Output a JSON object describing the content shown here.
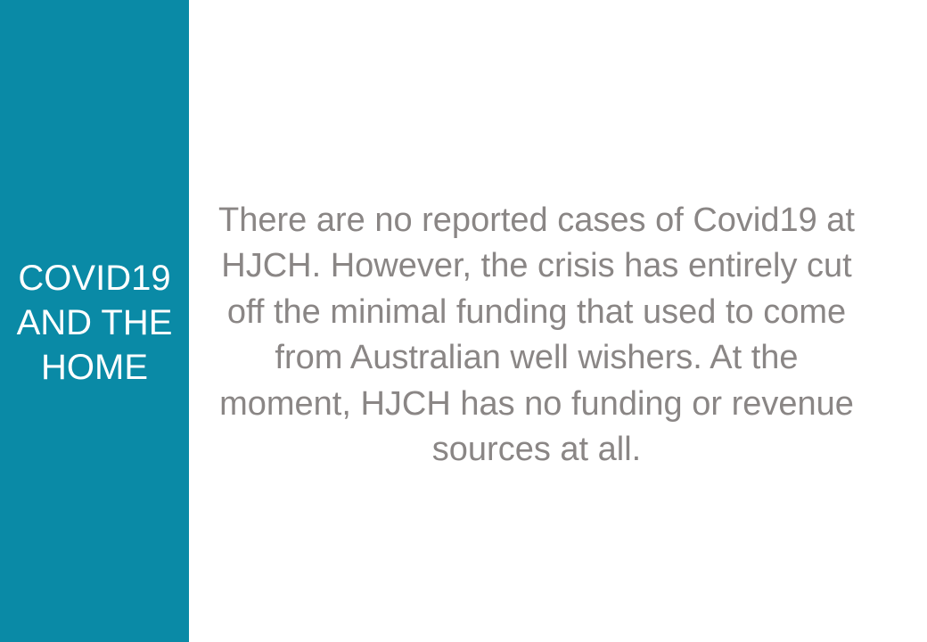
{
  "slide": {
    "title_lines": [
      "COVID19",
      "AND THE",
      "HOME"
    ],
    "body": "There are no reported cases of Covid19 at HJCH. However, the crisis has entirely cut off the minimal funding that used to come from Australian well wishers. At the moment, HJCH has no funding or revenue sources at all."
  },
  "colors": {
    "panel": "#0a8aa6",
    "title_text": "#ffffff",
    "body_text": "#8a8685",
    "background": "#ffffff"
  }
}
